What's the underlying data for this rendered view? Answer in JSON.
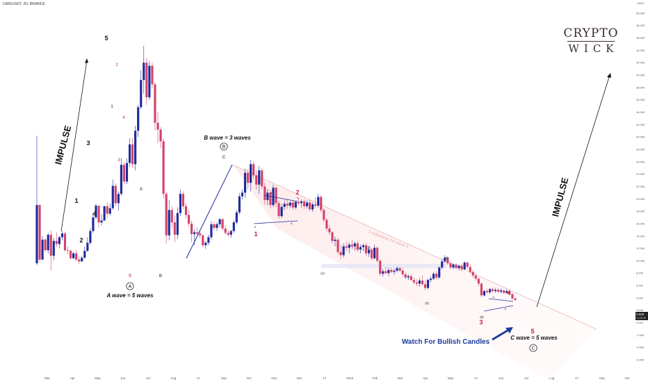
{
  "symbol": "CAKEUSDT, 2D, BINANCE",
  "logo": {
    "line1": "CRYPTO",
    "line2": "WICK"
  },
  "colors": {
    "up": "#1f2a9c",
    "down": "#d2436b",
    "accent_blue": "#1f3c9c",
    "wave_red": "#c0243f",
    "text": "#111111",
    "channel": "#f7cfcf"
  },
  "chart_data": {
    "type": "candlestick",
    "x_ticks": [
      "Mar",
      "Apr",
      "May",
      "Jun",
      "Jul",
      "Aug",
      "17",
      "Sep",
      "Oct",
      "Nov",
      "Dec",
      "17",
      "2023",
      "Feb",
      "Mar",
      "Apr",
      "May",
      "17",
      "Jun",
      "Jul",
      "Aug",
      "17",
      "Sep",
      "Oct"
    ],
    "y_ticks": [
      "50.000",
      "48.000",
      "46.000",
      "44.000",
      "42.000",
      "40.000",
      "38.000",
      "36.000",
      "34.000",
      "32.000",
      "30.000",
      "28.000",
      "26.000",
      "24.000",
      "22.000",
      "20.000",
      "18.000",
      "16.000",
      "14.000",
      "12.000",
      "10.000",
      "8.000",
      "6.000",
      "4.000",
      "2.000",
      "0.000",
      "-2.000",
      "-4.000",
      "-6.000"
    ],
    "y_unit": "USDT",
    "y_range": [
      -6.0,
      51.0
    ],
    "last_price": "3.658",
    "last_price_sub": "14:28:08",
    "annotations": {
      "impulse_left": "IMPULSE",
      "impulse_right": "IMPULSE",
      "a_wave": "A wave = 5 waves",
      "b_wave": "B wave = 3 waves",
      "c_wave": "C wave = 5 waves",
      "watch": "Watch For Bullish Candles",
      "subwaves": "5 subwaves for wave 3",
      "circle_A": "A",
      "circle_B": "B",
      "circle_C": "C",
      "w1": "1",
      "w2": "2",
      "w3": "3",
      "w4": "4",
      "w5": "5",
      "r5": "5",
      "rA": "A",
      "rB": "B",
      "rC": "C",
      "rb": "b",
      "rs": "s",
      "p1": "(1)",
      "p2": "(2)",
      "p3": "(3)",
      "p4": "(4)",
      "p5": "(5)",
      "red_a1": "1",
      "red_a2": "2",
      "red_a3": "3",
      "red_a4": "4",
      "red_a5": "5",
      "red_b1": "1",
      "red_b2": "2",
      "red_b3": "3",
      "red_b4": "4",
      "red_b5": "5",
      "small_a": "a",
      "small_b": "b",
      "small_c": "c",
      "small_d": "d"
    },
    "series": [
      {
        "o": 9.6,
        "h": 30.2,
        "l": 9.3,
        "c": 19.0
      },
      {
        "o": 19.0,
        "h": 19.1,
        "l": 9.8,
        "c": 10.2
      },
      {
        "o": 10.2,
        "h": 14.0,
        "l": 10.1,
        "c": 13.4
      },
      {
        "o": 13.4,
        "h": 13.6,
        "l": 11.4,
        "c": 11.7
      },
      {
        "o": 11.7,
        "h": 14.5,
        "l": 11.2,
        "c": 14.2
      },
      {
        "o": 14.2,
        "h": 14.9,
        "l": 8.4,
        "c": 10.8
      },
      {
        "o": 10.8,
        "h": 13.7,
        "l": 10.1,
        "c": 13.2
      },
      {
        "o": 13.2,
        "h": 14.5,
        "l": 12.2,
        "c": 12.7
      },
      {
        "o": 12.7,
        "h": 14.0,
        "l": 12.0,
        "c": 13.8
      },
      {
        "o": 13.8,
        "h": 14.8,
        "l": 13.3,
        "c": 14.4
      },
      {
        "o": 14.4,
        "h": 14.7,
        "l": 11.5,
        "c": 11.7
      },
      {
        "o": 11.7,
        "h": 12.3,
        "l": 11.0,
        "c": 11.6
      },
      {
        "o": 11.6,
        "h": 11.8,
        "l": 10.2,
        "c": 10.4
      },
      {
        "o": 10.4,
        "h": 11.4,
        "l": 10.3,
        "c": 11.2
      },
      {
        "o": 11.2,
        "h": 11.8,
        "l": 10.0,
        "c": 10.2
      },
      {
        "o": 10.2,
        "h": 10.7,
        "l": 9.5,
        "c": 9.9
      },
      {
        "o": 9.9,
        "h": 10.8,
        "l": 9.8,
        "c": 10.5
      },
      {
        "o": 10.5,
        "h": 12.3,
        "l": 10.3,
        "c": 11.6
      },
      {
        "o": 11.6,
        "h": 13.8,
        "l": 11.4,
        "c": 12.9
      },
      {
        "o": 12.9,
        "h": 15.2,
        "l": 12.6,
        "c": 14.8
      },
      {
        "o": 14.8,
        "h": 17.8,
        "l": 14.5,
        "c": 17.0
      },
      {
        "o": 17.0,
        "h": 19.2,
        "l": 16.7,
        "c": 18.9
      },
      {
        "o": 18.9,
        "h": 18.9,
        "l": 15.4,
        "c": 16.2
      },
      {
        "o": 16.2,
        "h": 17.5,
        "l": 15.7,
        "c": 16.5
      },
      {
        "o": 16.5,
        "h": 18.9,
        "l": 16.5,
        "c": 18.8
      },
      {
        "o": 18.8,
        "h": 19.5,
        "l": 16.9,
        "c": 17.6
      },
      {
        "o": 17.6,
        "h": 19.2,
        "l": 17.3,
        "c": 18.5
      },
      {
        "o": 18.5,
        "h": 23.1,
        "l": 18.2,
        "c": 22.1
      },
      {
        "o": 22.1,
        "h": 22.5,
        "l": 18.8,
        "c": 19.3
      },
      {
        "o": 19.3,
        "h": 21.2,
        "l": 18.1,
        "c": 20.8
      },
      {
        "o": 20.8,
        "h": 26.6,
        "l": 20.5,
        "c": 25.5
      },
      {
        "o": 25.5,
        "h": 25.9,
        "l": 22.3,
        "c": 22.8
      },
      {
        "o": 22.8,
        "h": 26.5,
        "l": 22.4,
        "c": 25.8
      },
      {
        "o": 25.8,
        "h": 29.8,
        "l": 25.2,
        "c": 28.8
      },
      {
        "o": 28.8,
        "h": 29.8,
        "l": 25.0,
        "c": 25.6
      },
      {
        "o": 25.6,
        "h": 31.8,
        "l": 24.6,
        "c": 31.0
      },
      {
        "o": 31.0,
        "h": 35.2,
        "l": 30.0,
        "c": 34.8
      },
      {
        "o": 34.8,
        "h": 40.8,
        "l": 34.5,
        "c": 39.2
      },
      {
        "o": 39.2,
        "h": 44.7,
        "l": 37.0,
        "c": 42.0
      },
      {
        "o": 42.0,
        "h": 42.8,
        "l": 35.2,
        "c": 36.4
      },
      {
        "o": 36.4,
        "h": 42.3,
        "l": 36.0,
        "c": 41.5
      },
      {
        "o": 41.5,
        "h": 42.0,
        "l": 37.8,
        "c": 38.5
      },
      {
        "o": 38.5,
        "h": 38.9,
        "l": 31.0,
        "c": 32.3
      },
      {
        "o": 32.3,
        "h": 34.1,
        "l": 29.0,
        "c": 31.2
      },
      {
        "o": 31.2,
        "h": 31.6,
        "l": 28.2,
        "c": 29.3
      },
      {
        "o": 29.3,
        "h": 29.8,
        "l": 20.0,
        "c": 20.8
      },
      {
        "o": 20.8,
        "h": 21.2,
        "l": 12.8,
        "c": 14.1
      },
      {
        "o": 14.1,
        "h": 19.8,
        "l": 13.3,
        "c": 18.2
      },
      {
        "o": 18.2,
        "h": 18.8,
        "l": 15.2,
        "c": 16.2
      },
      {
        "o": 16.2,
        "h": 17.3,
        "l": 13.0,
        "c": 14.2
      },
      {
        "o": 14.2,
        "h": 18.6,
        "l": 13.5,
        "c": 17.7
      },
      {
        "o": 17.7,
        "h": 21.5,
        "l": 17.2,
        "c": 20.8
      },
      {
        "o": 20.8,
        "h": 21.2,
        "l": 18.3,
        "c": 18.8
      },
      {
        "o": 18.8,
        "h": 19.3,
        "l": 16.8,
        "c": 17.4
      },
      {
        "o": 17.4,
        "h": 18.2,
        "l": 15.5,
        "c": 16.0
      },
      {
        "o": 16.0,
        "h": 16.5,
        "l": 13.0,
        "c": 14.3
      },
      {
        "o": 14.3,
        "h": 15.1,
        "l": 12.5,
        "c": 14.6
      },
      {
        "o": 14.6,
        "h": 15.4,
        "l": 13.9,
        "c": 14.4
      },
      {
        "o": 14.4,
        "h": 14.8,
        "l": 13.6,
        "c": 14.1
      },
      {
        "o": 14.1,
        "h": 14.3,
        "l": 12.2,
        "c": 12.5
      },
      {
        "o": 12.5,
        "h": 13.2,
        "l": 11.9,
        "c": 12.9
      },
      {
        "o": 12.9,
        "h": 14.2,
        "l": 12.5,
        "c": 13.8
      },
      {
        "o": 13.8,
        "h": 16.4,
        "l": 13.4,
        "c": 15.9
      },
      {
        "o": 15.9,
        "h": 16.3,
        "l": 14.9,
        "c": 15.3
      },
      {
        "o": 15.3,
        "h": 16.2,
        "l": 14.8,
        "c": 15.9
      },
      {
        "o": 15.9,
        "h": 16.9,
        "l": 15.4,
        "c": 16.7
      },
      {
        "o": 16.7,
        "h": 16.9,
        "l": 14.9,
        "c": 15.2
      },
      {
        "o": 15.2,
        "h": 15.8,
        "l": 14.2,
        "c": 14.5
      },
      {
        "o": 14.5,
        "h": 14.9,
        "l": 13.9,
        "c": 14.2
      },
      {
        "o": 14.2,
        "h": 15.0,
        "l": 13.7,
        "c": 14.8
      },
      {
        "o": 14.8,
        "h": 16.5,
        "l": 14.5,
        "c": 16.2
      },
      {
        "o": 16.2,
        "h": 18.2,
        "l": 15.9,
        "c": 17.8
      },
      {
        "o": 17.8,
        "h": 20.9,
        "l": 17.5,
        "c": 20.4
      },
      {
        "o": 20.4,
        "h": 21.5,
        "l": 19.9,
        "c": 21.0
      },
      {
        "o": 21.0,
        "h": 24.9,
        "l": 20.2,
        "c": 24.2
      },
      {
        "o": 24.2,
        "h": 24.8,
        "l": 21.5,
        "c": 22.6
      },
      {
        "o": 22.6,
        "h": 26.3,
        "l": 21.2,
        "c": 25.6
      },
      {
        "o": 25.6,
        "h": 26.0,
        "l": 23.2,
        "c": 23.8
      },
      {
        "o": 23.8,
        "h": 24.6,
        "l": 21.5,
        "c": 22.3
      },
      {
        "o": 22.3,
        "h": 25.3,
        "l": 20.8,
        "c": 24.6
      },
      {
        "o": 24.6,
        "h": 24.9,
        "l": 21.5,
        "c": 22.0
      },
      {
        "o": 22.0,
        "h": 22.6,
        "l": 19.1,
        "c": 19.8
      },
      {
        "o": 19.8,
        "h": 21.6,
        "l": 19.0,
        "c": 21.0
      },
      {
        "o": 21.0,
        "h": 21.4,
        "l": 18.5,
        "c": 19.0
      },
      {
        "o": 19.0,
        "h": 22.3,
        "l": 18.7,
        "c": 21.8
      },
      {
        "o": 21.8,
        "h": 22.0,
        "l": 18.7,
        "c": 19.3
      },
      {
        "o": 19.3,
        "h": 19.7,
        "l": 16.8,
        "c": 17.2
      },
      {
        "o": 17.2,
        "h": 19.2,
        "l": 16.9,
        "c": 18.7
      },
      {
        "o": 18.7,
        "h": 19.8,
        "l": 18.2,
        "c": 19.2
      },
      {
        "o": 19.2,
        "h": 19.9,
        "l": 18.4,
        "c": 18.9
      },
      {
        "o": 18.9,
        "h": 19.6,
        "l": 18.5,
        "c": 19.4
      },
      {
        "o": 19.4,
        "h": 19.7,
        "l": 18.2,
        "c": 18.6
      },
      {
        "o": 18.6,
        "h": 19.7,
        "l": 18.3,
        "c": 19.5
      },
      {
        "o": 19.5,
        "h": 20.2,
        "l": 19.0,
        "c": 19.3
      },
      {
        "o": 19.3,
        "h": 19.9,
        "l": 18.6,
        "c": 19.6
      },
      {
        "o": 19.6,
        "h": 19.9,
        "l": 18.4,
        "c": 18.8
      },
      {
        "o": 18.8,
        "h": 19.8,
        "l": 18.4,
        "c": 19.4
      },
      {
        "o": 19.4,
        "h": 19.8,
        "l": 18.0,
        "c": 18.3
      },
      {
        "o": 18.3,
        "h": 19.4,
        "l": 17.9,
        "c": 19.1
      },
      {
        "o": 19.1,
        "h": 20.2,
        "l": 18.6,
        "c": 18.9
      },
      {
        "o": 18.9,
        "h": 20.8,
        "l": 18.6,
        "c": 20.3
      },
      {
        "o": 20.3,
        "h": 20.6,
        "l": 17.8,
        "c": 18.2
      },
      {
        "o": 18.2,
        "h": 18.5,
        "l": 16.2,
        "c": 16.6
      },
      {
        "o": 16.6,
        "h": 16.9,
        "l": 14.8,
        "c": 15.2
      },
      {
        "o": 15.2,
        "h": 15.8,
        "l": 14.2,
        "c": 14.6
      },
      {
        "o": 14.6,
        "h": 14.8,
        "l": 12.8,
        "c": 13.2
      },
      {
        "o": 13.2,
        "h": 13.9,
        "l": 12.3,
        "c": 13.4
      },
      {
        "o": 13.4,
        "h": 13.7,
        "l": 11.0,
        "c": 11.4
      },
      {
        "o": 11.4,
        "h": 12.4,
        "l": 10.3,
        "c": 10.9
      },
      {
        "o": 10.9,
        "h": 12.8,
        "l": 10.5,
        "c": 12.3
      },
      {
        "o": 12.3,
        "h": 13.0,
        "l": 11.6,
        "c": 12.1
      },
      {
        "o": 12.1,
        "h": 12.9,
        "l": 11.2,
        "c": 12.6
      },
      {
        "o": 12.6,
        "h": 13.3,
        "l": 11.8,
        "c": 12.3
      },
      {
        "o": 12.3,
        "h": 13.1,
        "l": 11.6,
        "c": 12.8
      },
      {
        "o": 12.8,
        "h": 13.2,
        "l": 11.4,
        "c": 11.8
      },
      {
        "o": 11.8,
        "h": 12.6,
        "l": 11.2,
        "c": 12.2
      },
      {
        "o": 12.2,
        "h": 12.8,
        "l": 11.5,
        "c": 12.5
      },
      {
        "o": 12.5,
        "h": 12.9,
        "l": 10.8,
        "c": 11.2
      },
      {
        "o": 11.2,
        "h": 12.4,
        "l": 10.6,
        "c": 11.8
      },
      {
        "o": 11.8,
        "h": 12.0,
        "l": 10.1,
        "c": 10.4
      },
      {
        "o": 10.4,
        "h": 12.6,
        "l": 10.2,
        "c": 12.1
      },
      {
        "o": 12.1,
        "h": 12.3,
        "l": 9.7,
        "c": 10.0
      },
      {
        "o": 10.0,
        "h": 10.2,
        "l": 7.6,
        "c": 7.9
      },
      {
        "o": 7.9,
        "h": 8.7,
        "l": 7.4,
        "c": 8.3
      },
      {
        "o": 8.3,
        "h": 8.9,
        "l": 7.8,
        "c": 8.0
      },
      {
        "o": 8.0,
        "h": 8.8,
        "l": 7.5,
        "c": 8.5
      },
      {
        "o": 8.5,
        "h": 8.9,
        "l": 8.0,
        "c": 8.2
      },
      {
        "o": 8.2,
        "h": 8.7,
        "l": 7.7,
        "c": 8.4
      },
      {
        "o": 8.4,
        "h": 9.1,
        "l": 8.1,
        "c": 8.8
      },
      {
        "o": 8.8,
        "h": 9.0,
        "l": 8.2,
        "c": 8.4
      },
      {
        "o": 8.4,
        "h": 8.8,
        "l": 7.5,
        "c": 7.8
      },
      {
        "o": 7.8,
        "h": 8.1,
        "l": 7.0,
        "c": 7.3
      },
      {
        "o": 7.3,
        "h": 7.8,
        "l": 6.9,
        "c": 7.5
      },
      {
        "o": 7.5,
        "h": 7.8,
        "l": 6.7,
        "c": 6.9
      },
      {
        "o": 6.9,
        "h": 7.3,
        "l": 6.2,
        "c": 6.5
      },
      {
        "o": 6.5,
        "h": 7.0,
        "l": 5.9,
        "c": 6.3
      },
      {
        "o": 6.3,
        "h": 7.2,
        "l": 5.8,
        "c": 6.8
      },
      {
        "o": 6.8,
        "h": 7.6,
        "l": 6.0,
        "c": 6.2
      },
      {
        "o": 6.2,
        "h": 6.8,
        "l": 5.2,
        "c": 5.6
      },
      {
        "o": 5.6,
        "h": 7.1,
        "l": 5.4,
        "c": 6.9
      },
      {
        "o": 6.9,
        "h": 7.5,
        "l": 6.5,
        "c": 7.1
      },
      {
        "o": 7.1,
        "h": 8.2,
        "l": 6.9,
        "c": 7.9
      },
      {
        "o": 7.9,
        "h": 8.3,
        "l": 7.0,
        "c": 7.3
      },
      {
        "o": 7.3,
        "h": 9.1,
        "l": 7.1,
        "c": 8.9
      },
      {
        "o": 8.9,
        "h": 10.3,
        "l": 8.6,
        "c": 9.9
      },
      {
        "o": 9.9,
        "h": 10.9,
        "l": 9.6,
        "c": 10.5
      },
      {
        "o": 10.5,
        "h": 10.7,
        "l": 9.3,
        "c": 9.6
      },
      {
        "o": 9.6,
        "h": 9.9,
        "l": 8.6,
        "c": 8.9
      },
      {
        "o": 8.9,
        "h": 9.6,
        "l": 8.6,
        "c": 9.4
      },
      {
        "o": 9.4,
        "h": 9.6,
        "l": 8.6,
        "c": 8.8
      },
      {
        "o": 8.8,
        "h": 9.4,
        "l": 8.4,
        "c": 9.2
      },
      {
        "o": 9.2,
        "h": 9.5,
        "l": 8.3,
        "c": 8.6
      },
      {
        "o": 8.6,
        "h": 9.9,
        "l": 8.5,
        "c": 9.7
      },
      {
        "o": 9.7,
        "h": 9.8,
        "l": 8.7,
        "c": 9.0
      },
      {
        "o": 9.0,
        "h": 9.4,
        "l": 7.9,
        "c": 8.2
      },
      {
        "o": 8.2,
        "h": 8.5,
        "l": 7.2,
        "c": 7.6
      },
      {
        "o": 7.6,
        "h": 7.9,
        "l": 6.8,
        "c": 7.1
      },
      {
        "o": 7.1,
        "h": 7.3,
        "l": 5.9,
        "c": 6.3
      },
      {
        "o": 6.3,
        "h": 6.5,
        "l": 4.1,
        "c": 4.4
      },
      {
        "o": 4.4,
        "h": 5.3,
        "l": 4.2,
        "c": 5.1
      },
      {
        "o": 5.1,
        "h": 5.5,
        "l": 4.7,
        "c": 4.9
      },
      {
        "o": 4.9,
        "h": 5.6,
        "l": 4.6,
        "c": 5.4
      },
      {
        "o": 5.4,
        "h": 5.7,
        "l": 4.9,
        "c": 5.1
      },
      {
        "o": 5.1,
        "h": 5.6,
        "l": 4.8,
        "c": 5.3
      },
      {
        "o": 5.3,
        "h": 5.6,
        "l": 4.8,
        "c": 5.0
      },
      {
        "o": 5.0,
        "h": 5.5,
        "l": 4.7,
        "c": 5.2
      },
      {
        "o": 5.2,
        "h": 5.3,
        "l": 4.6,
        "c": 4.8
      },
      {
        "o": 4.8,
        "h": 5.4,
        "l": 4.7,
        "c": 5.1
      },
      {
        "o": 5.1,
        "h": 5.2,
        "l": 4.4,
        "c": 4.6
      },
      {
        "o": 4.6,
        "h": 4.8,
        "l": 3.7,
        "c": 3.9
      },
      {
        "o": 3.9,
        "h": 4.1,
        "l": 3.5,
        "c": 3.658
      }
    ]
  }
}
